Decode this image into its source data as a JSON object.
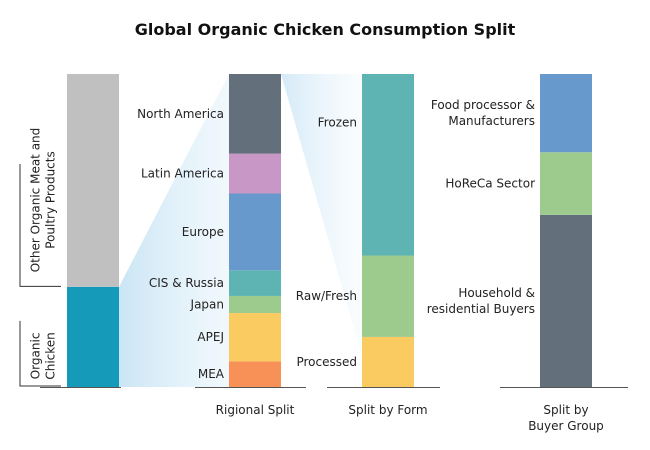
{
  "chart_data": {
    "type": "bar",
    "title": "Global Organic Chicken Consumption Split",
    "unit": "",
    "stacks": [
      {
        "id": "total",
        "xlabel": "",
        "segments": [
          {
            "label": "Organic Chicken",
            "value": 0.32,
            "color": "#159ab9"
          },
          {
            "label": "Other Organic Meat and Poultry Products",
            "value": 0.68,
            "color": "#c0c0c0"
          }
        ]
      },
      {
        "id": "regional",
        "xlabel": "Rigional Split",
        "segments": [
          {
            "label": "MEA",
            "value": 0.09,
            "color": "#f89158"
          },
          {
            "label": "APEJ",
            "value": 0.17,
            "color": "#f9cb60"
          },
          {
            "label": "Japan",
            "value": 0.06,
            "color": "#9ccb8d"
          },
          {
            "label": "CIS & Russia",
            "value": 0.09,
            "color": "#5eb4b3"
          },
          {
            "label": "Europe",
            "value": 0.27,
            "color": "#6899cd"
          },
          {
            "label": "Latin America",
            "value": 0.14,
            "color": "#c897c6"
          },
          {
            "label": "North America",
            "value": 0.28,
            "color": "#636f7b"
          }
        ]
      },
      {
        "id": "form",
        "xlabel": "Split by Form",
        "segments": [
          {
            "label": "Processed",
            "value": 0.16,
            "color": "#f9cb60"
          },
          {
            "label": "Raw/Fresh",
            "value": 0.26,
            "color": "#9ccb8d"
          },
          {
            "label": "Frozen",
            "value": 0.58,
            "color": "#5eb4b3"
          }
        ]
      },
      {
        "id": "buyer",
        "xlabel": "Split by Buyer Group",
        "segments": [
          {
            "label": "Household & residential Buyers",
            "value": 0.55,
            "color": "#636f7b"
          },
          {
            "label": "HoReCa Sector",
            "value": 0.2,
            "color": "#9ccb8d"
          },
          {
            "label": "Food processor & Manufacturers",
            "value": 0.25,
            "color": "#6899cd"
          }
        ]
      }
    ]
  }
}
